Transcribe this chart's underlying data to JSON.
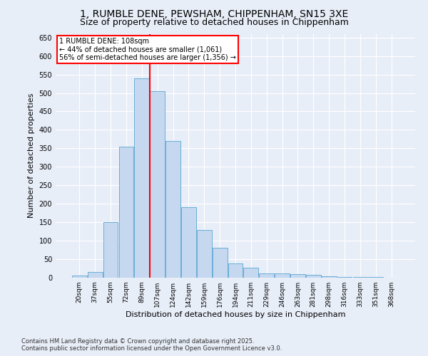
{
  "title1": "1, RUMBLE DENE, PEWSHAM, CHIPPENHAM, SN15 3XE",
  "title2": "Size of property relative to detached houses in Chippenham",
  "xlabel": "Distribution of detached houses by size in Chippenham",
  "ylabel": "Number of detached properties",
  "categories": [
    "20sqm",
    "37sqm",
    "55sqm",
    "72sqm",
    "89sqm",
    "107sqm",
    "124sqm",
    "142sqm",
    "159sqm",
    "176sqm",
    "194sqm",
    "211sqm",
    "229sqm",
    "246sqm",
    "263sqm",
    "281sqm",
    "298sqm",
    "316sqm",
    "333sqm",
    "351sqm",
    "368sqm"
  ],
  "values": [
    5,
    15,
    150,
    355,
    540,
    505,
    370,
    190,
    130,
    80,
    38,
    27,
    12,
    12,
    10,
    8,
    3,
    2,
    1,
    1,
    0
  ],
  "bar_color": "#c5d8f0",
  "bar_edge_color": "#6aaed6",
  "vline_color": "red",
  "vline_x": 4.5,
  "property_label": "1 RUMBLE DENE: 108sqm",
  "annotation_line1": "← 44% of detached houses are smaller (1,061)",
  "annotation_line2": "56% of semi-detached houses are larger (1,356) →",
  "annotation_box_color": "white",
  "annotation_box_edgecolor": "red",
  "ylim": [
    0,
    660
  ],
  "yticks": [
    0,
    50,
    100,
    150,
    200,
    250,
    300,
    350,
    400,
    450,
    500,
    550,
    600,
    650
  ],
  "footnote1": "Contains HM Land Registry data © Crown copyright and database right 2025.",
  "footnote2": "Contains public sector information licensed under the Open Government Licence v3.0.",
  "bg_color": "#e8eef8",
  "grid_color": "white",
  "title1_fontsize": 10,
  "title2_fontsize": 9,
  "xlabel_fontsize": 8,
  "ylabel_fontsize": 8
}
